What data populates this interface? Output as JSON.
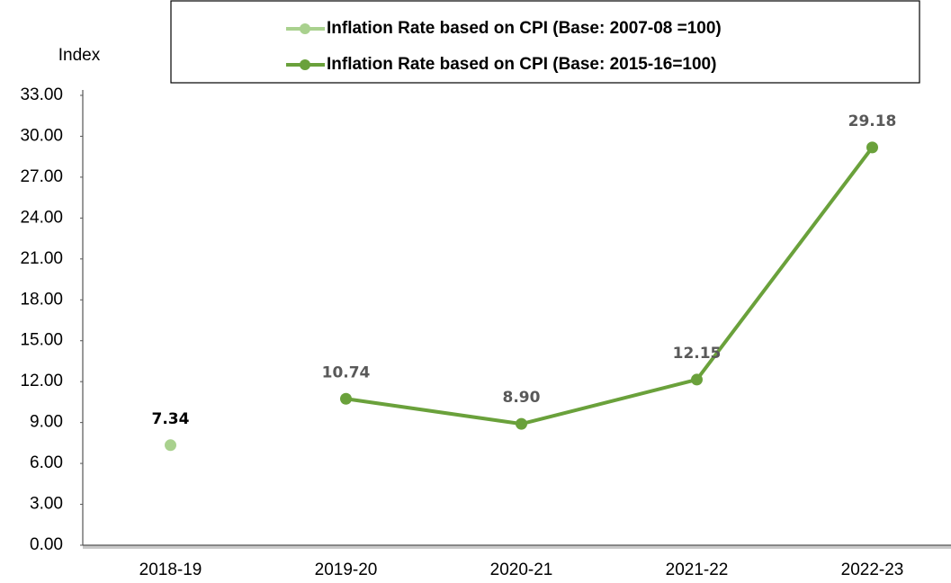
{
  "chart_data": {
    "type": "line",
    "y_label": "Index",
    "categories": [
      "2018-19",
      "2019-20",
      "2020-21",
      "2021-22",
      "2022-23"
    ],
    "series": [
      {
        "name": "Inflation Rate based on CPI (Base: 2007-08 =100)",
        "color": "#a9d18e",
        "values": [
          7.34,
          null,
          null,
          null,
          null
        ],
        "value_labels": [
          "7.34",
          null,
          null,
          null,
          null
        ]
      },
      {
        "name": "Inflation Rate based on CPI (Base: 2015-16=100)",
        "color": "#6aa13b",
        "values": [
          null,
          10.74,
          8.9,
          12.15,
          29.18
        ],
        "value_labels": [
          null,
          "10.74",
          "8.90",
          "12.15",
          "29.18"
        ]
      }
    ],
    "ylim": [
      0,
      33
    ],
    "yticks": [
      {
        "value": 0,
        "label": "0.00"
      },
      {
        "value": 3,
        "label": "3.00"
      },
      {
        "value": 6,
        "label": "6.00"
      },
      {
        "value": 9,
        "label": "9.00"
      },
      {
        "value": 12,
        "label": "12.00"
      },
      {
        "value": 15,
        "label": "15.00"
      },
      {
        "value": 18,
        "label": "18.00"
      },
      {
        "value": 21,
        "label": "21.00"
      },
      {
        "value": 24,
        "label": "24.00"
      },
      {
        "value": 27,
        "label": "27.00"
      },
      {
        "value": 30,
        "label": "30.00"
      },
      {
        "value": 33,
        "label": "33.00"
      }
    ],
    "grid": false,
    "legend": "top"
  }
}
